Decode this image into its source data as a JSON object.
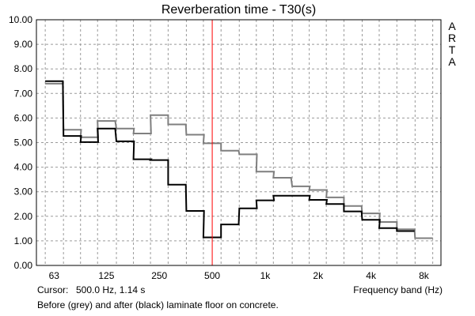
{
  "chart_data": {
    "type": "line",
    "title": "Reverberation time - T30(s)",
    "xlabel": "Frequency band (Hz)",
    "ylabel": "",
    "x_scale": "log",
    "x_ticks": [
      63,
      125,
      250,
      500,
      1000,
      2000,
      4000,
      8000
    ],
    "x_tick_labels": [
      "63",
      "125",
      "250",
      "500",
      "1k",
      "2k",
      "4k",
      "8k"
    ],
    "bands_third_octave": [
      63,
      80,
      100,
      125,
      160,
      200,
      250,
      315,
      400,
      500,
      630,
      800,
      1000,
      1250,
      1600,
      2000,
      2500,
      3150,
      4000,
      5000,
      6300,
      8000
    ],
    "ylim": [
      0,
      10
    ],
    "y_ticks": [
      0,
      1,
      2,
      3,
      4,
      5,
      6,
      7,
      8,
      9,
      10
    ],
    "y_tick_labels": [
      "0.00",
      "1.00",
      "2.00",
      "3.00",
      "4.00",
      "5.00",
      "6.00",
      "7.00",
      "8.00",
      "9.00",
      "10.00"
    ],
    "grid": true,
    "series": [
      {
        "color": "#7f7f7f",
        "values": [
          7.4,
          5.52,
          5.22,
          5.88,
          5.57,
          5.37,
          6.12,
          5.74,
          5.32,
          4.97,
          4.67,
          4.52,
          3.82,
          3.57,
          3.22,
          3.07,
          2.77,
          2.42,
          2.12,
          1.77,
          1.47,
          1.11
        ]
      },
      {
        "color": "#000000",
        "values": [
          7.5,
          5.27,
          5.02,
          5.57,
          5.05,
          4.32,
          4.29,
          3.29,
          2.22,
          1.14,
          1.67,
          2.32,
          2.65,
          2.84,
          2.84,
          2.67,
          2.5,
          2.2,
          1.86,
          1.52,
          1.4,
          null
        ]
      }
    ],
    "cursor": {
      "x": 500,
      "color": "#ff0000"
    }
  },
  "cursor_label": "Cursor:",
  "cursor_value": "500.0 Hz, 1.14 s",
  "caption": "Before (grey) and after (black) laminate floor on concrete.",
  "brand": [
    "A",
    "R",
    "T",
    "A"
  ]
}
